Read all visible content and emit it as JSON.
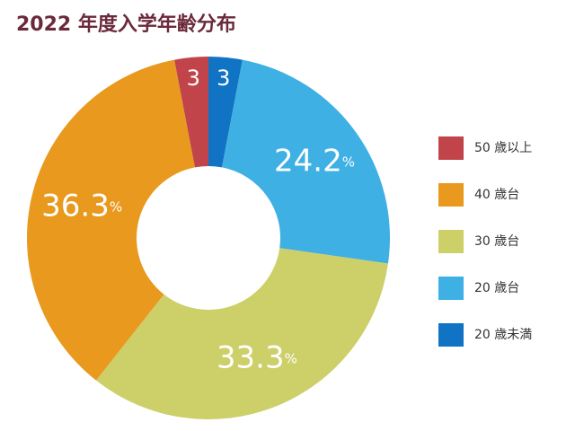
{
  "chart_data": {
    "type": "donut",
    "title": "2022 年度入学年齢分布",
    "categories": [
      "50 歳以上",
      "40 歳台",
      "30 歳台",
      "20 歳台",
      "20 歳未満"
    ],
    "values": [
      3,
      36.3,
      33.3,
      24.2,
      3
    ],
    "value_labels": [
      "3",
      "36.3%",
      "33.3%",
      "24.2%",
      "3"
    ],
    "colors": [
      "#c0444a",
      "#e8991e",
      "#cdcf69",
      "#3eb0e4",
      "#1173c4"
    ]
  }
}
